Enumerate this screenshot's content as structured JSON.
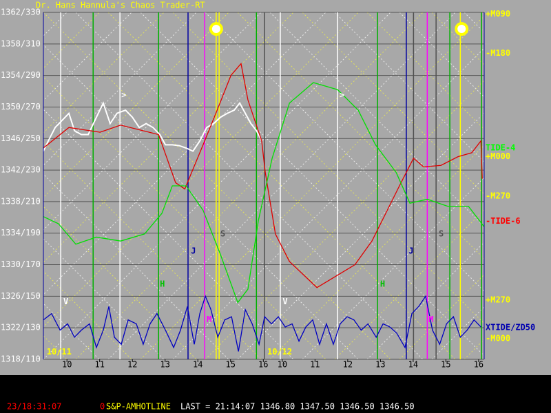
{
  "chart_data": {
    "type": "line",
    "title": "Dr. Hans Hannula's Chaos Trader-RT",
    "xlim": [
      0,
      13.47
    ],
    "ylim": [
      1318,
      1362
    ],
    "yticks": [
      {
        "value": 1362,
        "label": "1362/330"
      },
      {
        "value": 1358,
        "label": "1358/310"
      },
      {
        "value": 1354,
        "label": "1354/290"
      },
      {
        "value": 1350,
        "label": "1350/270"
      },
      {
        "value": 1346,
        "label": "1346/250"
      },
      {
        "value": 1342,
        "label": "1342/230"
      },
      {
        "value": 1338,
        "label": "1338/210"
      },
      {
        "value": 1334,
        "label": "1334/190"
      },
      {
        "value": 1330,
        "label": "1330/170"
      },
      {
        "value": 1326,
        "label": "1326/150"
      },
      {
        "value": 1322,
        "label": "1322/130"
      },
      {
        "value": 1318,
        "label": "1318/110"
      }
    ],
    "xticks": [
      {
        "value": 0.72,
        "label": "10"
      },
      {
        "value": 1.72,
        "label": "11"
      },
      {
        "value": 2.72,
        "label": "12"
      },
      {
        "value": 3.72,
        "label": "13"
      },
      {
        "value": 4.72,
        "label": "14"
      },
      {
        "value": 5.72,
        "label": "15"
      },
      {
        "value": 6.72,
        "label": "16"
      },
      {
        "value": 7.3,
        "label": "10"
      },
      {
        "value": 8.3,
        "label": "11"
      },
      {
        "value": 9.3,
        "label": "12"
      },
      {
        "value": 10.3,
        "label": "13"
      },
      {
        "value": 11.3,
        "label": "14"
      },
      {
        "value": 12.3,
        "label": "15"
      },
      {
        "value": 13.3,
        "label": "16"
      }
    ],
    "grid": true,
    "right_labels": [
      {
        "value": 1361.8,
        "label": "+M090",
        "color": "#ffff00"
      },
      {
        "value": 1356.8,
        "label": "-M180",
        "color": "#ffff00"
      },
      {
        "value": 1344.8,
        "label": "TIDE-4",
        "color": "#00ff00"
      },
      {
        "value": 1343.7,
        "label": "+M000",
        "color": "#ffff00"
      },
      {
        "value": 1338.7,
        "label": "-M270",
        "color": "#ffff00"
      },
      {
        "value": 1335.5,
        "label": "-TIDE-6",
        "color": "#ff0000"
      },
      {
        "value": 1325.5,
        "label": "+M270",
        "color": "#ffff00"
      },
      {
        "value": 1322.0,
        "label": "XTIDE/ZD50",
        "color": "#0000b0"
      },
      {
        "value": 1320.6,
        "label": "-M000",
        "color": "#ffff00"
      }
    ],
    "vlines": [
      {
        "x": 0.53,
        "color": "#ffffff"
      },
      {
        "x": 2.34,
        "color": "#ffffff"
      },
      {
        "x": 7.24,
        "color": "#ffffff"
      },
      {
        "x": 8.99,
        "color": "#ffffff"
      },
      {
        "x": 1.52,
        "color": "#00b000"
      },
      {
        "x": 3.52,
        "color": "#00b000"
      },
      {
        "x": 6.51,
        "color": "#00b000"
      },
      {
        "x": 10.21,
        "color": "#00b000"
      },
      {
        "x": 12.42,
        "color": "#00b000"
      },
      {
        "x": 13.39,
        "color": "#00b000"
      },
      {
        "x": 4.42,
        "color": "#0000a0"
      },
      {
        "x": 11.09,
        "color": "#0000a0"
      },
      {
        "x": 4.93,
        "color": "#ff00ff"
      },
      {
        "x": 11.73,
        "color": "#ff00ff"
      },
      {
        "x": 5.28,
        "color": "#ffff00"
      },
      {
        "x": 5.37,
        "color": "#ffff00"
      },
      {
        "x": 12.74,
        "color": "#ffff00"
      },
      {
        "x": 6.76,
        "color": "#505050"
      },
      {
        "x": 11.31,
        "color": "#505050"
      },
      {
        "x": 12.0,
        "color": "#505050"
      }
    ],
    "series": [
      {
        "name": "price",
        "color": "#ffffff",
        "x": [
          0,
          0.15,
          0.36,
          0.57,
          0.78,
          0.95,
          1.16,
          1.37,
          1.62,
          1.83,
          2.04,
          2.25,
          2.51,
          2.72,
          2.93,
          3.14,
          3.35,
          3.56,
          3.73,
          3.94,
          4.15,
          4.36,
          4.57,
          4.78,
          4.99,
          5.2,
          5.41,
          5.62,
          5.83,
          6.0,
          6.17,
          6.34,
          6.51,
          6.67
        ],
        "values": [
          1344.4,
          1345.7,
          1347.4,
          1348.3,
          1349.2,
          1347.0,
          1346.5,
          1346.5,
          1348.7,
          1350.5,
          1347.9,
          1349.2,
          1349.6,
          1348.7,
          1347.4,
          1347.9,
          1347.4,
          1346.5,
          1345.2,
          1345.2,
          1345.1,
          1344.8,
          1344.4,
          1345.7,
          1347.4,
          1347.9,
          1348.7,
          1349.2,
          1349.6,
          1350.5,
          1349.2,
          1347.9,
          1347.0,
          1345.7
        ]
      },
      {
        "name": "-TIDE-6",
        "color": "#e00000",
        "x": [
          0,
          0.78,
          1.73,
          2.36,
          3.52,
          4.04,
          4.32,
          4.88,
          5.31,
          5.73,
          6.04,
          6.25,
          6.67,
          6.78,
          7.09,
          7.52,
          8.36,
          9.52,
          10.04,
          10.88,
          11.31,
          11.62,
          12.15,
          12.67,
          13.09,
          13.37,
          13.41
        ],
        "values": [
          1344.8,
          1347.4,
          1346.8,
          1347.7,
          1346.5,
          1340.4,
          1339.6,
          1345.2,
          1349.6,
          1354.0,
          1355.5,
          1350.9,
          1345.7,
          1341.7,
          1333.9,
          1330.4,
          1327.1,
          1330.0,
          1333.0,
          1340.0,
          1343.5,
          1342.4,
          1342.6,
          1343.7,
          1344.2,
          1345.7,
          1340.9
        ]
      },
      {
        "name": "TIDE-4",
        "color": "#00e000",
        "x": [
          0,
          0.46,
          0.99,
          1.62,
          2.36,
          3.09,
          3.62,
          3.94,
          4.36,
          4.88,
          5.41,
          5.94,
          6.25,
          6.57,
          6.99,
          7.52,
          8.25,
          8.99,
          9.62,
          10.15,
          10.78,
          11.2,
          11.73,
          12.36,
          12.99,
          13.47
        ],
        "values": [
          1336.1,
          1335.2,
          1332.6,
          1333.5,
          1333.0,
          1333.9,
          1336.5,
          1340.0,
          1340.0,
          1336.9,
          1331.3,
          1325.2,
          1326.9,
          1335.6,
          1343.5,
          1350.5,
          1353.1,
          1352.2,
          1349.6,
          1345.2,
          1341.7,
          1337.8,
          1338.3,
          1337.4,
          1337.4,
          1334.8
        ]
      },
      {
        "name": "XTIDE/ZD50",
        "color": "#0000c0",
        "x": [
          0,
          0.25,
          0.51,
          0.74,
          0.95,
          1.16,
          1.41,
          1.62,
          1.83,
          2.0,
          2.17,
          2.38,
          2.59,
          2.84,
          3.05,
          3.26,
          3.47,
          3.73,
          3.98,
          4.19,
          4.4,
          4.61,
          4.78,
          4.95,
          5.12,
          5.33,
          5.54,
          5.75,
          5.96,
          6.17,
          6.38,
          6.59,
          6.76,
          6.97,
          7.18,
          7.39,
          7.6,
          7.81,
          8.02,
          8.23,
          8.44,
          8.65,
          8.86,
          9.07,
          9.28,
          9.49,
          9.71,
          9.92,
          10.17,
          10.38,
          10.59,
          10.8,
          11.05,
          11.26,
          11.47,
          11.68,
          11.89,
          12.11,
          12.32,
          12.53,
          12.74,
          12.95,
          13.16,
          13.37
        ],
        "values": [
          1323.0,
          1323.8,
          1321.7,
          1322.5,
          1320.8,
          1321.7,
          1322.5,
          1319.5,
          1321.7,
          1324.7,
          1320.8,
          1319.9,
          1323.0,
          1322.5,
          1319.9,
          1322.5,
          1323.8,
          1321.7,
          1319.5,
          1321.7,
          1324.7,
          1319.9,
          1323.8,
          1326.0,
          1324.3,
          1320.8,
          1323.0,
          1323.4,
          1319.0,
          1324.3,
          1322.5,
          1319.9,
          1323.4,
          1322.5,
          1323.4,
          1322.1,
          1322.5,
          1320.3,
          1322.1,
          1323.0,
          1319.9,
          1322.5,
          1319.9,
          1322.5,
          1323.4,
          1323.0,
          1321.7,
          1322.5,
          1320.8,
          1322.5,
          1322.1,
          1321.3,
          1319.5,
          1323.8,
          1324.7,
          1326.0,
          1321.7,
          1319.9,
          1322.5,
          1323.4,
          1320.8,
          1321.7,
          1323.0,
          1322.1
        ]
      }
    ],
    "annotations": [
      {
        "text": "V",
        "x": 0.61,
        "y": 1325.3,
        "color": "#ffffff"
      },
      {
        "text": "V",
        "x": 7.31,
        "y": 1325.3,
        "color": "#ffffff"
      },
      {
        "text": "J",
        "x": 4.51,
        "y": 1331.7,
        "color": "#0000a0"
      },
      {
        "text": "J",
        "x": 11.16,
        "y": 1331.7,
        "color": "#0000a0"
      },
      {
        "text": "H",
        "x": 3.56,
        "y": 1327.5,
        "color": "#00c000"
      },
      {
        "text": "H",
        "x": 10.29,
        "y": 1327.5,
        "color": "#00c000"
      },
      {
        "text": "M",
        "x": 4.99,
        "y": 1323.0,
        "color": "#ff00ff"
      },
      {
        "text": "M",
        "x": 11.77,
        "y": 1323.0,
        "color": "#ff00ff"
      },
      {
        "text": "S",
        "x": 5.41,
        "y": 1333.9,
        "color": "#505050"
      },
      {
        "text": "S",
        "x": 12.08,
        "y": 1333.9,
        "color": "#505050"
      },
      {
        "text": ">",
        "x": 2.38,
        "y": 1351.5,
        "color": "#ffffff"
      },
      {
        "text": ">",
        "x": 9.05,
        "y": 1351.5,
        "color": "#ffffff"
      },
      {
        "text": "10/11",
        "x": 0.1,
        "y": 1318.9,
        "color": "#ffff00"
      },
      {
        "text": "10/12",
        "x": 6.84,
        "y": 1318.9,
        "color": "#ffff00"
      }
    ],
    "suns": [
      {
        "x": 5.28,
        "y": 1359.9
      },
      {
        "x": 12.78,
        "y": 1359.9
      }
    ],
    "status": {
      "clock": "23/18:31:07",
      "count": "0",
      "symbol": "S&P-AMHOTLINE",
      "quote": "LAST = 21:14:07 1346.80 1347.50 1346.50 1346.50"
    }
  }
}
